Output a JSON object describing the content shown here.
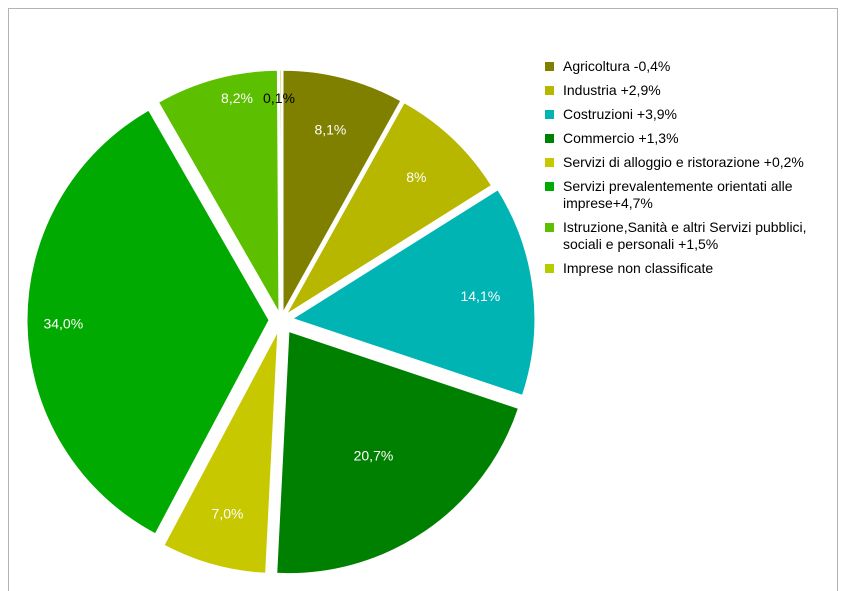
{
  "chart_data": {
    "type": "pie",
    "title": "",
    "values": [
      8.1,
      8.0,
      14.1,
      20.7,
      7.0,
      34.0,
      8.2,
      0.1
    ],
    "value_labels": [
      "8,1%",
      "8%",
      "14,1%",
      "20,7%",
      "7,0%",
      "34,0%",
      "8,2%",
      "0,1%"
    ],
    "categories": [
      "Agricoltura -0,4%",
      "Industria +2,9%",
      "Costruzioni +3,9%",
      "Commercio +1,3%",
      "Servizi di alloggio e ristorazione +0,2%",
      "Servizi prevalentemente orientati alle imprese+4,7%",
      "Istruzione,Sanità e altri Servizi pubblici, sociali e personali +1,5%",
      "Imprese non classificate"
    ],
    "colors": [
      "#7f7f00",
      "#b7b700",
      "#00b4b4",
      "#008000",
      "#c8c800",
      "#00aa00",
      "#5cbf00",
      "#b4cc00"
    ],
    "label_colors": [
      "#ffffff",
      "#ffffff",
      "#ffffff",
      "#ffffff",
      "#ffffff",
      "#ffffff",
      "#ffffff",
      "#000000"
    ],
    "legend_position": "right"
  }
}
